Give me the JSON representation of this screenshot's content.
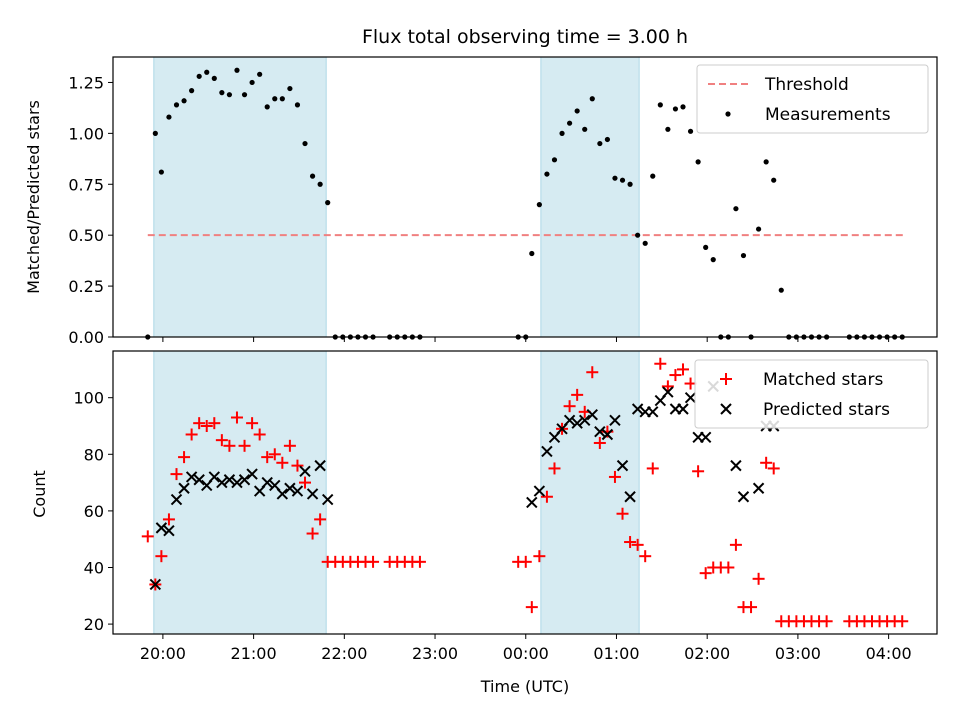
{
  "chart_data": [
    {
      "type": "scatter",
      "title": "Flux total observing time = 3.00 h",
      "ylabel": "Matched/Predicted stars",
      "ylim": [
        0,
        1.375
      ],
      "yticks": [
        0,
        0.25,
        0.5,
        0.75,
        1.0,
        1.25
      ],
      "ytick_labels": [
        "0.00",
        "0.25",
        "0.50",
        "0.75",
        "1.00",
        "1.25"
      ],
      "xlim": [
        1167,
        1712
      ],
      "shaded_intervals": [
        [
          1194,
          1308
        ],
        [
          1450,
          1515
        ]
      ],
      "shade_color": "#add8e6",
      "legend_position": "top-right",
      "threshold": {
        "name": "Threshold",
        "y": 0.5,
        "x_range": [
          1190,
          1690
        ],
        "color": "#f08080",
        "style": "dashed"
      },
      "series": [
        {
          "name": "Measurements",
          "marker": "dot",
          "color": "#000000",
          "x": [
            1190,
            1195,
            1199,
            1204,
            1209,
            1214,
            1219,
            1224,
            1229,
            1234,
            1239,
            1244,
            1249,
            1254,
            1259,
            1264,
            1269,
            1274,
            1279,
            1284,
            1289,
            1294,
            1299,
            1304,
            1309,
            1314,
            1319,
            1324,
            1329,
            1334,
            1339,
            1350,
            1355,
            1360,
            1365,
            1370,
            1435,
            1440,
            1444,
            1449,
            1454,
            1459,
            1464,
            1469,
            1474,
            1479,
            1484,
            1489,
            1494,
            1499,
            1504,
            1509,
            1514,
            1519,
            1524,
            1529,
            1534,
            1539,
            1544,
            1549,
            1554,
            1559,
            1564,
            1569,
            1574,
            1579,
            1584,
            1589,
            1594,
            1599,
            1604,
            1609,
            1614,
            1619,
            1624,
            1629,
            1634,
            1639,
            1654,
            1659,
            1664,
            1669,
            1674,
            1679,
            1684,
            1689
          ],
          "y": [
            0.0,
            1.0,
            0.81,
            1.08,
            1.14,
            1.16,
            1.21,
            1.28,
            1.3,
            1.27,
            1.2,
            1.19,
            1.31,
            1.19,
            1.25,
            1.29,
            1.13,
            1.17,
            1.17,
            1.22,
            1.14,
            0.95,
            0.79,
            0.75,
            0.66,
            0.0,
            0.0,
            0.0,
            0.0,
            0.0,
            0.0,
            0.0,
            0.0,
            0.0,
            0.0,
            0.0,
            0.0,
            0.0,
            0.41,
            0.65,
            0.8,
            0.87,
            1.0,
            1.05,
            1.11,
            1.02,
            1.17,
            0.95,
            0.97,
            0.78,
            0.77,
            0.75,
            0.5,
            0.46,
            0.79,
            1.14,
            1.02,
            1.12,
            1.13,
            1.01,
            0.86,
            0.44,
            0.38,
            0.0,
            0.0,
            0.63,
            0.4,
            0.0,
            0.53,
            0.86,
            0.77,
            0.23,
            0.0,
            0.0,
            0.0,
            0.0,
            0.0,
            0.0,
            0.0,
            0.0,
            0.0,
            0.0,
            0.0,
            0.0,
            0.0,
            0.0
          ]
        }
      ]
    },
    {
      "type": "scatter",
      "ylabel": "Count",
      "xlabel": "Time (UTC)",
      "ylim": [
        16.5,
        116.5
      ],
      "yticks": [
        20,
        40,
        60,
        80,
        100
      ],
      "ytick_labels": [
        "20",
        "40",
        "60",
        "80",
        "100"
      ],
      "xlim": [
        1167,
        1712
      ],
      "xticks": [
        1200,
        1260,
        1320,
        1380,
        1440,
        1500,
        1560,
        1620,
        1680
      ],
      "xtick_labels": [
        "20:00",
        "21:00",
        "22:00",
        "23:00",
        "00:00",
        "01:00",
        "02:00",
        "03:00",
        "04:00"
      ],
      "shaded_intervals": [
        [
          1194,
          1308
        ],
        [
          1450,
          1515
        ]
      ],
      "legend_position": "top-right",
      "series": [
        {
          "name": "Matched stars",
          "marker": "plus",
          "color": "#ff0000",
          "x": [
            1190,
            1195,
            1199,
            1204,
            1209,
            1214,
            1219,
            1224,
            1229,
            1234,
            1239,
            1244,
            1249,
            1254,
            1259,
            1264,
            1269,
            1274,
            1279,
            1284,
            1289,
            1294,
            1299,
            1304,
            1309,
            1314,
            1319,
            1324,
            1329,
            1334,
            1339,
            1350,
            1355,
            1360,
            1365,
            1370,
            1435,
            1440,
            1444,
            1449,
            1454,
            1459,
            1464,
            1469,
            1474,
            1479,
            1484,
            1489,
            1494,
            1499,
            1504,
            1509,
            1514,
            1519,
            1524,
            1529,
            1534,
            1539,
            1544,
            1549,
            1554,
            1559,
            1564,
            1569,
            1574,
            1579,
            1584,
            1589,
            1594,
            1599,
            1604,
            1609,
            1614,
            1619,
            1624,
            1629,
            1634,
            1639,
            1654,
            1659,
            1664,
            1669,
            1674,
            1679,
            1684,
            1689
          ],
          "y": [
            51,
            34,
            44,
            57,
            73,
            79,
            87,
            91,
            90,
            91,
            85,
            83,
            93,
            83,
            91,
            87,
            79,
            80,
            77,
            83,
            76,
            70,
            52,
            57,
            42,
            42,
            42,
            42,
            42,
            42,
            42,
            42,
            42,
            42,
            42,
            42,
            42,
            42,
            26,
            44,
            65,
            75,
            89,
            97,
            101,
            95,
            109,
            84,
            88,
            72,
            59,
            49,
            48,
            44,
            75,
            112,
            104,
            108,
            110,
            105,
            74,
            38,
            40,
            40,
            40,
            48,
            26,
            26,
            36,
            77,
            75,
            21,
            21,
            21,
            21,
            21,
            21,
            21,
            21,
            21,
            21,
            21,
            21,
            21,
            21,
            21
          ]
        },
        {
          "name": "Predicted stars",
          "marker": "x",
          "color": "#000000",
          "x": [
            1195,
            1199,
            1204,
            1209,
            1214,
            1219,
            1224,
            1229,
            1234,
            1239,
            1244,
            1249,
            1254,
            1259,
            1264,
            1269,
            1274,
            1279,
            1284,
            1289,
            1294,
            1299,
            1304,
            1309,
            1444,
            1449,
            1454,
            1459,
            1464,
            1469,
            1474,
            1479,
            1484,
            1489,
            1494,
            1499,
            1504,
            1509,
            1514,
            1519,
            1524,
            1529,
            1534,
            1539,
            1544,
            1549,
            1554,
            1559,
            1564,
            1579,
            1584,
            1594,
            1599,
            1604
          ],
          "y": [
            34,
            54,
            53,
            64,
            68,
            72,
            71,
            69,
            72,
            70,
            71,
            70,
            71,
            73,
            67,
            70,
            69,
            66,
            68,
            67,
            74,
            66,
            76,
            64,
            63,
            67,
            81,
            86,
            89,
            92,
            91,
            92,
            94,
            88,
            87,
            92,
            76,
            65,
            96,
            95,
            95,
            99,
            102,
            96,
            96,
            100,
            86,
            86,
            104,
            76,
            65,
            68,
            90,
            90
          ]
        }
      ]
    }
  ]
}
